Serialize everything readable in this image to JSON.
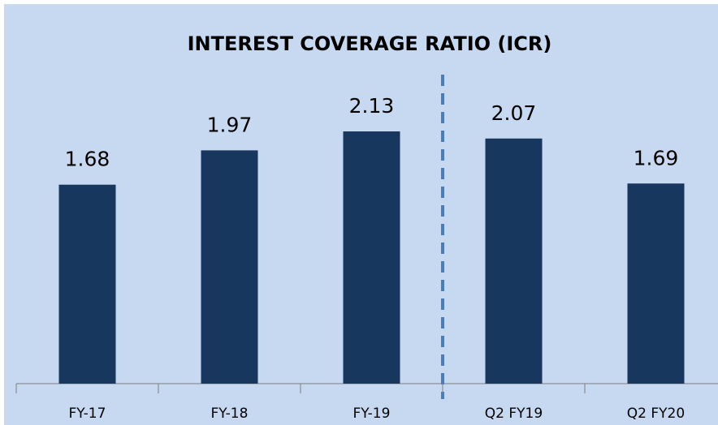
{
  "chart_data": {
    "type": "bar",
    "title": "INTEREST COVERAGE RATIO (ICR)",
    "categories": [
      "FY-17",
      "FY-18",
      "FY-19",
      "Q2 FY19",
      "Q2 FY20"
    ],
    "values": [
      1.68,
      1.97,
      2.13,
      2.07,
      1.69
    ],
    "color": "#17375e",
    "ylim": [
      0,
      2.5
    ]
  }
}
